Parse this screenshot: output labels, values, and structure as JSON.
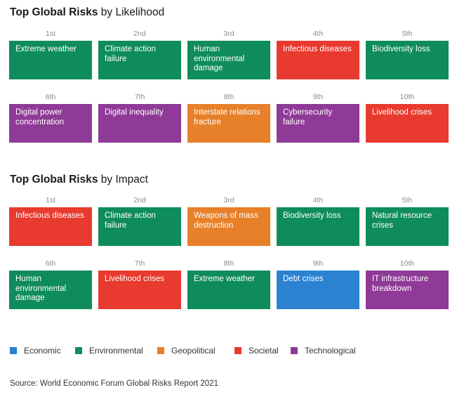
{
  "colors": {
    "Economic": "#2b82d0",
    "Environmental": "#0f8c5c",
    "Geopolitical": "#e8802a",
    "Societal": "#e83a2e",
    "Technological": "#8e3a96"
  },
  "chart_data": [
    {
      "type": "table",
      "title_bold": "Top Global Risks",
      "title_rest": "by Likelihood",
      "items": [
        {
          "rank": "1st",
          "label": "Extreme weather",
          "category": "Environmental"
        },
        {
          "rank": "2nd",
          "label": "Climate action failure",
          "category": "Environmental"
        },
        {
          "rank": "3rd",
          "label": "Human environmental damage",
          "category": "Environmental"
        },
        {
          "rank": "4th",
          "label": "Infectious diseases",
          "category": "Societal"
        },
        {
          "rank": "5th",
          "label": "Biodiversity loss",
          "category": "Environmental"
        },
        {
          "rank": "6th",
          "label": "Digital power concentration",
          "category": "Technological"
        },
        {
          "rank": "7th",
          "label": "Digital inequality",
          "category": "Technological"
        },
        {
          "rank": "8th",
          "label": "Interstate relations fracture",
          "category": "Geopolitical"
        },
        {
          "rank": "9th",
          "label": "Cybersecurity failure",
          "category": "Technological"
        },
        {
          "rank": "10th",
          "label": "Livelihood crises",
          "category": "Societal"
        }
      ]
    },
    {
      "type": "table",
      "title_bold": "Top Global Risks",
      "title_rest": "by Impact",
      "items": [
        {
          "rank": "1st",
          "label": "Infectious diseases",
          "category": "Societal"
        },
        {
          "rank": "2nd",
          "label": "Climate action failure",
          "category": "Environmental"
        },
        {
          "rank": "3rd",
          "label": "Weapons of mass destruction",
          "category": "Geopolitical"
        },
        {
          "rank": "4th",
          "label": "Biodiversity loss",
          "category": "Environmental"
        },
        {
          "rank": "5th",
          "label": "Natural resource crises",
          "category": "Environmental"
        },
        {
          "rank": "6th",
          "label": "Human environmental damage",
          "category": "Environmental"
        },
        {
          "rank": "7th",
          "label": "Livelihood crises",
          "category": "Societal"
        },
        {
          "rank": "8th",
          "label": "Extreme weather",
          "category": "Environmental"
        },
        {
          "rank": "9th",
          "label": "Debt crises",
          "category": "Economic"
        },
        {
          "rank": "10th",
          "label": "IT infrastructure breakdown",
          "category": "Technological"
        }
      ]
    }
  ],
  "legend": [
    "Economic",
    "Environmental",
    "Geopolitical",
    "Societal",
    "Technological"
  ],
  "source": "Source: World Economic Forum Global Risks Report 2021"
}
